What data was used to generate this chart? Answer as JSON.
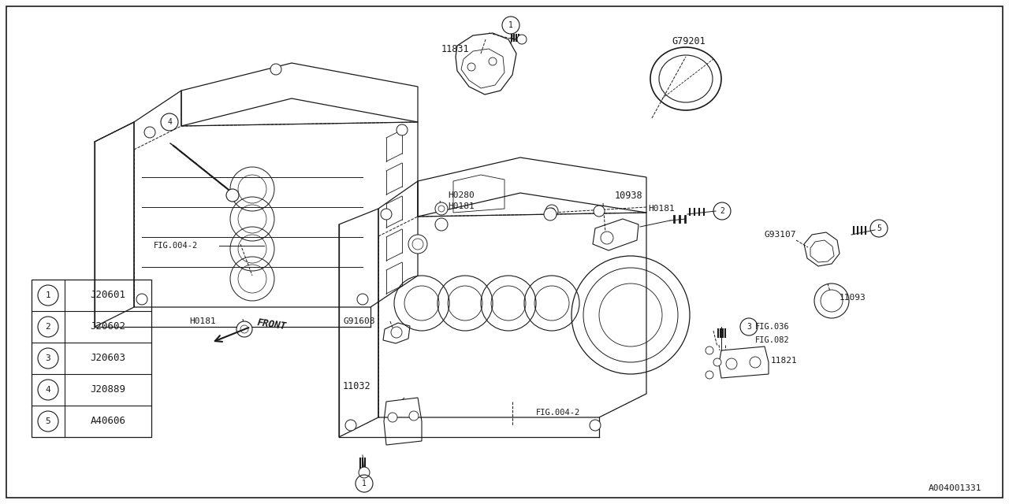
{
  "bg_color": "#ffffff",
  "line_color": "#1a1a1a",
  "fig_width": 12.8,
  "fig_height": 6.4,
  "dpi": 100,
  "footer_id": "A004001331",
  "legend_entries": [
    {
      "num": "1",
      "code": "J20601"
    },
    {
      "num": "2",
      "code": "J20602"
    },
    {
      "num": "3",
      "code": "J20603"
    },
    {
      "num": "4",
      "code": "J20889"
    },
    {
      "num": "5",
      "code": "A40606"
    }
  ]
}
